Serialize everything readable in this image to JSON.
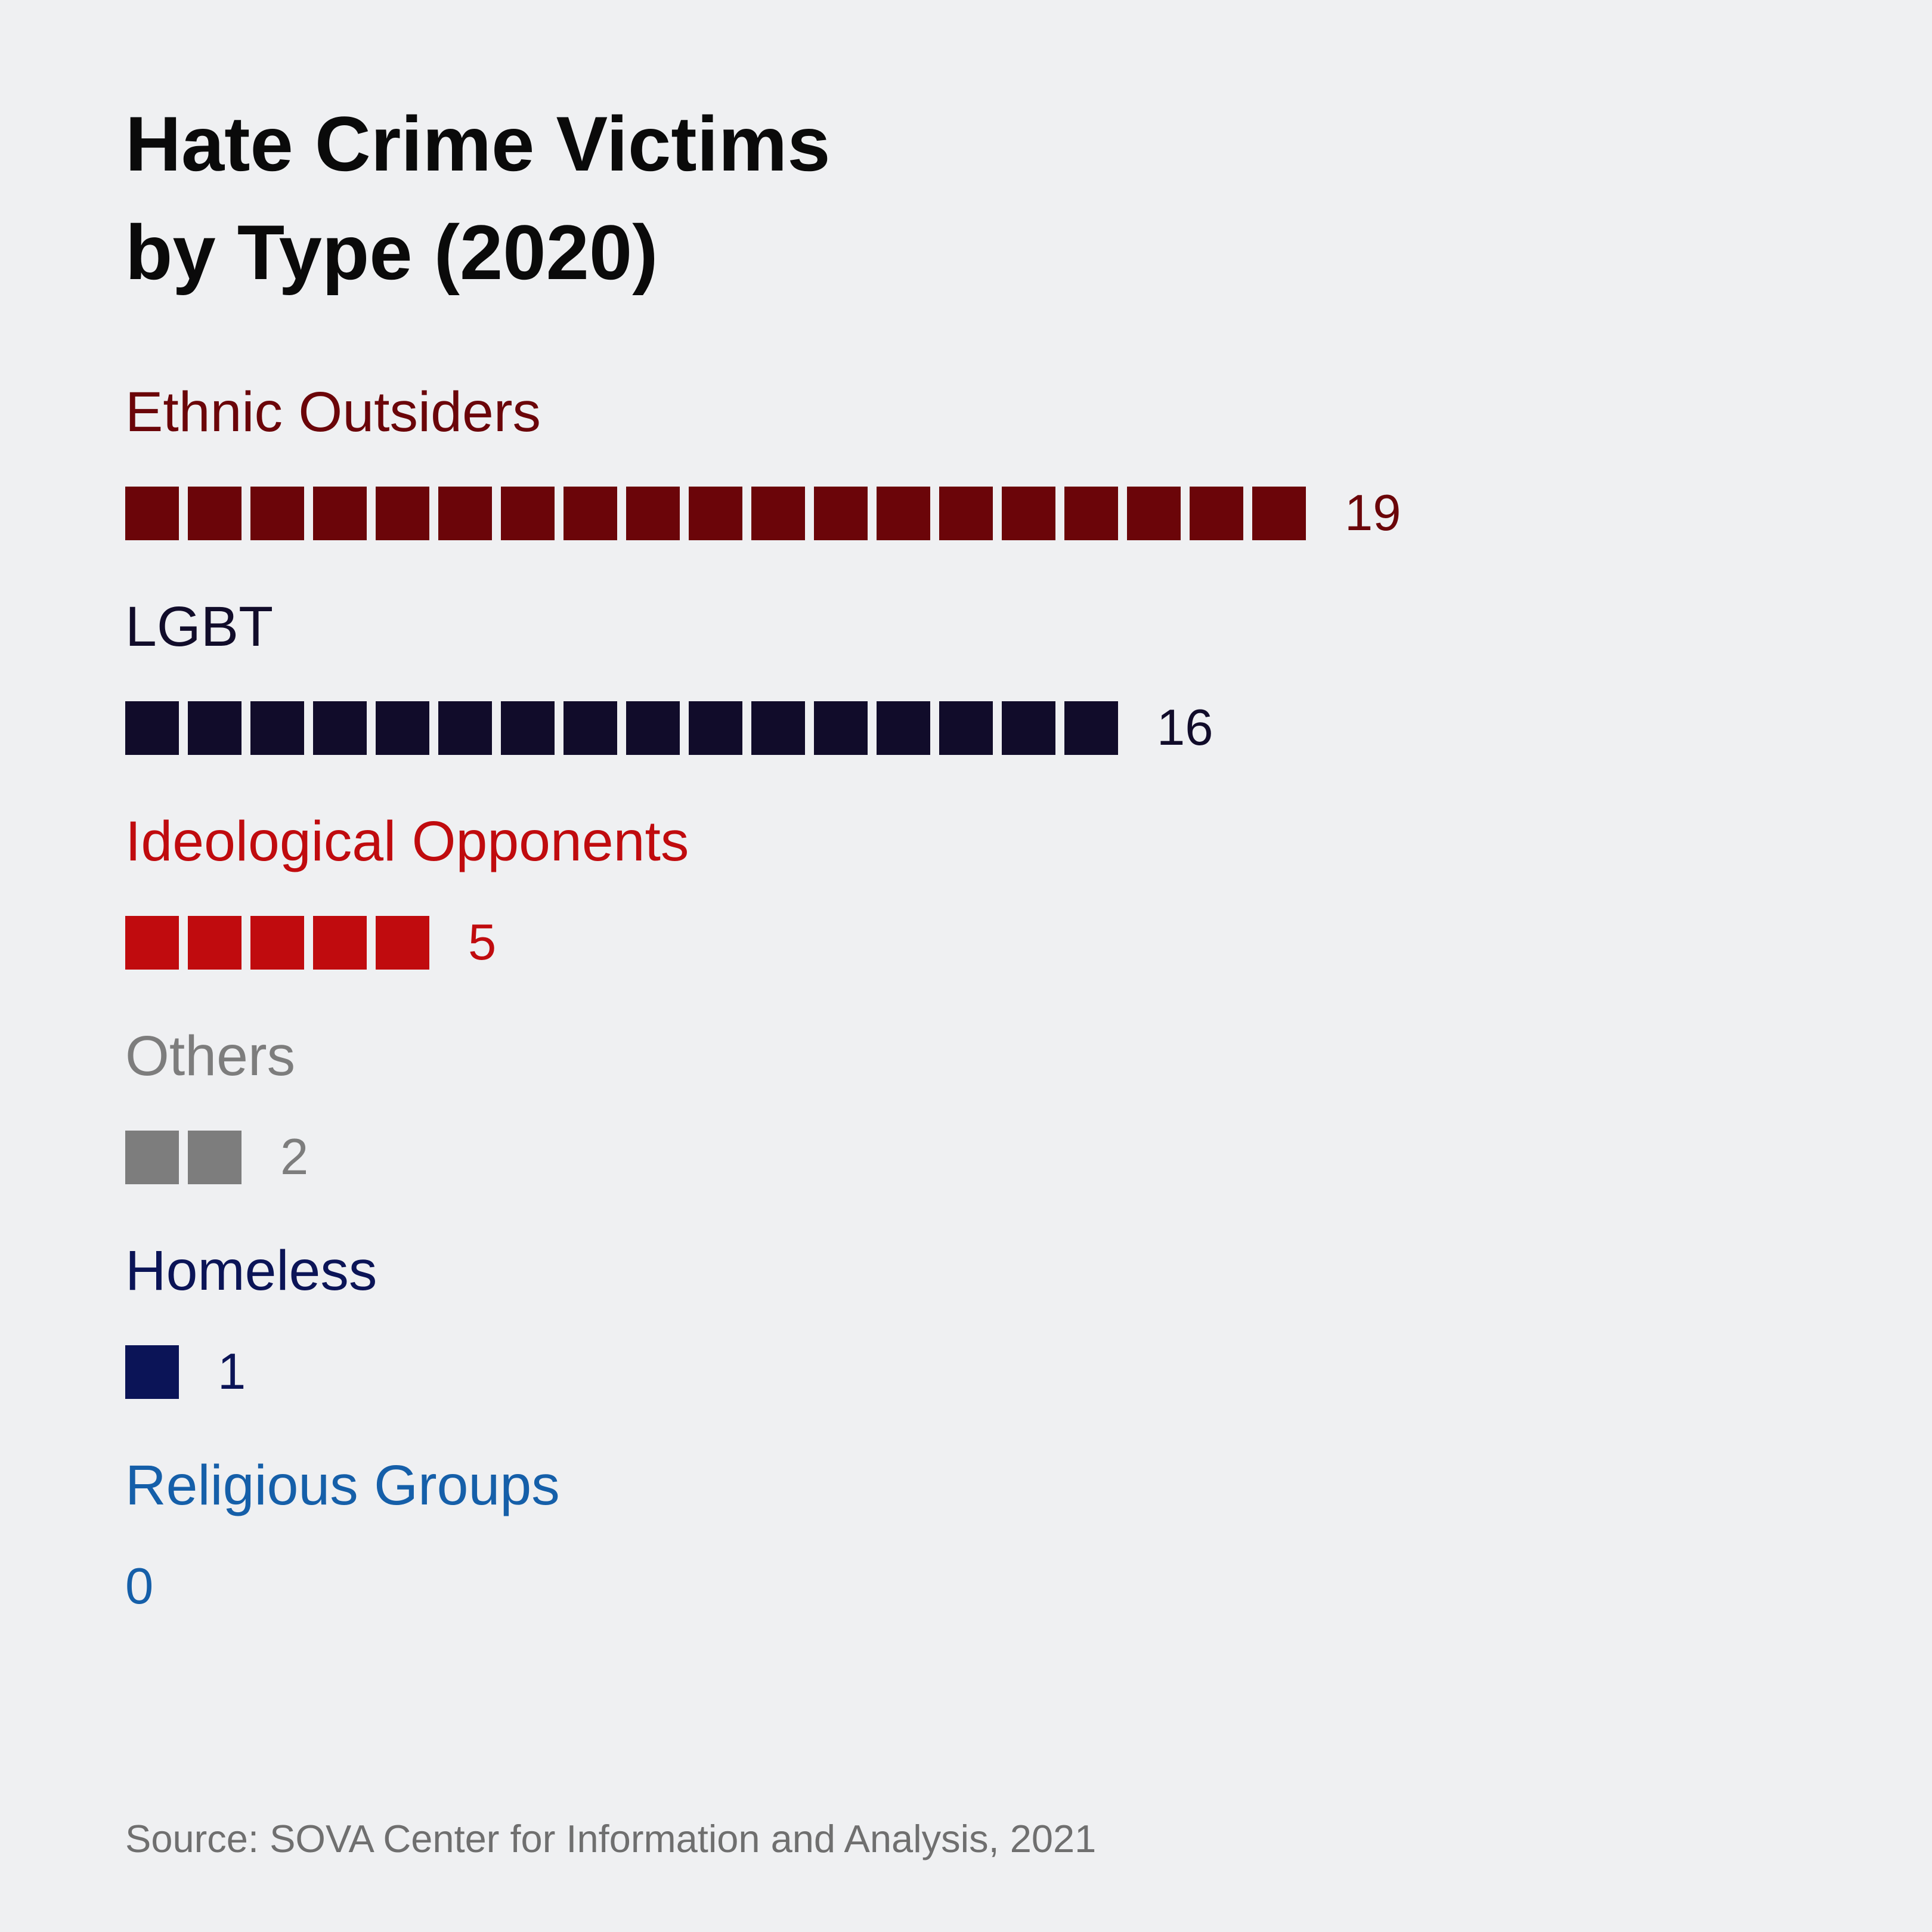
{
  "title": {
    "line1": "Hate Crime Victims",
    "line2": "by Type (2020)"
  },
  "source": "Source: SOVA Center for Information and Analysis, 2021",
  "background_color": "#eff0f2",
  "title_color": "#0a0a0a",
  "source_color": "#6f6f6f",
  "chart_data": {
    "type": "bar",
    "variant": "isotype-pictogram-unit-squares",
    "orientation": "horizontal",
    "unit": 1,
    "title": "Hate Crime Victims by Type (2020)",
    "xlabel": "",
    "ylabel": "",
    "grid": false,
    "legend": "none",
    "categories": [
      "Ethnic Outsiders",
      "LGBT",
      "Ideological Opponents",
      "Others",
      "Homeless",
      "Religious Groups"
    ],
    "values": [
      19,
      16,
      5,
      2,
      1,
      0
    ],
    "rows": [
      {
        "label": "Ethnic Outsiders",
        "value": 19,
        "color": "#6b0509"
      },
      {
        "label": "LGBT",
        "value": 16,
        "color": "#110c2a"
      },
      {
        "label": "Ideological Opponents",
        "value": 5,
        "color": "#c00b0e"
      },
      {
        "label": "Others",
        "value": 2,
        "color": "#7d7d7d"
      },
      {
        "label": "Homeless",
        "value": 1,
        "color": "#0b1457"
      },
      {
        "label": "Religious Groups",
        "value": 0,
        "color": "#155fa9"
      }
    ]
  }
}
